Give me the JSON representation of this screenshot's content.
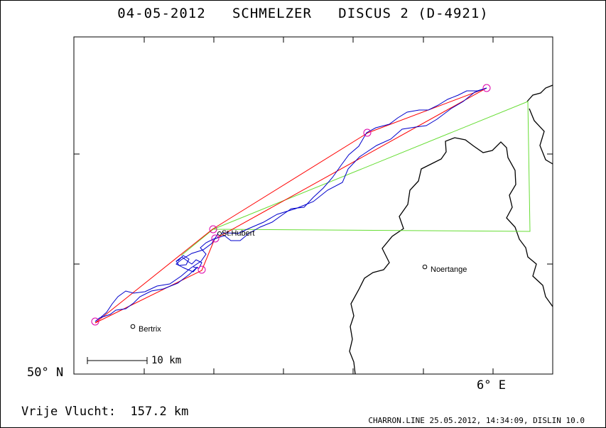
{
  "title": "04-05-2012   SCHMELZER   DISCUS 2 (D-4921)",
  "axes": {
    "lat_label": "50° N",
    "lon_label": "6° E"
  },
  "scale_bar": {
    "label": "10 km"
  },
  "places": [
    {
      "name": "St.Hubert"
    },
    {
      "name": "Noertange"
    },
    {
      "name": "Bertrix"
    }
  ],
  "footer": {
    "result": "Vrije Vlucht:  157.2 km",
    "credit": "CHARRON.LINE 25.05.2012, 14:34:09, DISLIN 10.0"
  },
  "colors": {
    "track": "#0000cc",
    "sector": "#ff0000",
    "task": "#66dd33",
    "turnpoint": "#dd00aa",
    "border": "#000000"
  }
}
